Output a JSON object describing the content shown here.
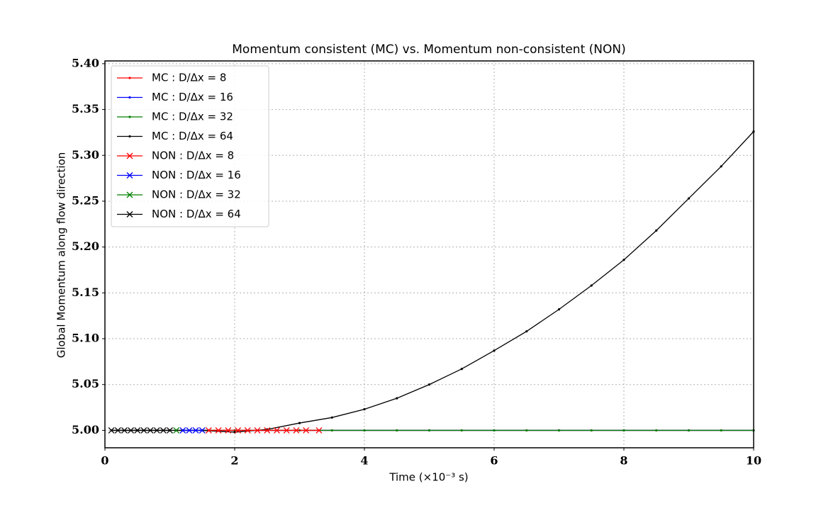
{
  "chart_data": {
    "type": "line",
    "title": "Momentum consistent (MC) vs. Momentum non-consistent (NON)",
    "x_label": "Time (×10⁻³ s)",
    "y_label": "Global Momentum along flow direction",
    "xlim": [
      0,
      10
    ],
    "ylim": [
      4.981,
      5.403
    ],
    "xticks": [
      0,
      2,
      4,
      6,
      8,
      10
    ],
    "yticks": [
      {
        "value": 5.0,
        "label": "5.00"
      },
      {
        "value": 5.05,
        "label": "5.05"
      },
      {
        "value": 5.1,
        "label": "5.10"
      },
      {
        "value": 5.15,
        "label": "5.15"
      },
      {
        "value": 5.2,
        "label": "5.20"
      },
      {
        "value": 5.25,
        "label": "5.25"
      },
      {
        "value": 5.3,
        "label": "5.30"
      },
      {
        "value": 5.35,
        "label": "5.35"
      },
      {
        "value": 5.4,
        "label": "5.40"
      }
    ],
    "grid": true,
    "legend": "upper left",
    "series": [
      {
        "name": "MC : D/Δx = 8",
        "color": "#ff0000",
        "marker": "dot",
        "x": [
          1.6,
          2,
          2.5,
          3,
          3.5,
          4,
          4.5,
          5,
          5.5,
          6,
          6.5,
          7,
          7.5,
          8,
          8.5,
          9,
          9.5,
          10
        ],
        "values": [
          5,
          5,
          5,
          5,
          5,
          5,
          5,
          5,
          5,
          5,
          5,
          5,
          5,
          5,
          5,
          5,
          5,
          5
        ]
      },
      {
        "name": "MC : D/Δx = 16",
        "color": "#0000ff",
        "marker": "dot",
        "x": [
          1.2,
          2,
          3,
          4,
          5,
          6,
          7,
          8,
          9,
          10
        ],
        "values": [
          5,
          5,
          5,
          5,
          5,
          5,
          5,
          5,
          5,
          5
        ]
      },
      {
        "name": "MC : D/Δx = 32",
        "color": "#008000",
        "marker": "dot",
        "x": [
          1.1,
          2,
          3,
          3.5,
          4,
          4.5,
          5,
          5.5,
          6,
          6.5,
          7,
          7.5,
          8,
          8.5,
          9,
          9.5,
          10
        ],
        "values": [
          5,
          5,
          5,
          5,
          5,
          5,
          5,
          5,
          5,
          5,
          5,
          5,
          5,
          5,
          5,
          5,
          5
        ]
      },
      {
        "name": "MC : D/Δx = 64",
        "color": "#000000",
        "marker": "dot",
        "x": [
          0.1,
          0.5,
          1,
          1.5,
          2,
          2.5,
          3,
          3.5,
          4,
          4.5,
          5,
          5.5,
          6,
          6.5,
          7,
          7.5,
          8,
          8.5,
          9,
          9.5,
          10
        ],
        "values": [
          5,
          5,
          5,
          5,
          4.998,
          5.001,
          5.008,
          5.014,
          5.023,
          5.035,
          5.05,
          5.067,
          5.087,
          5.108,
          5.132,
          5.158,
          5.186,
          5.218,
          5.253,
          5.288,
          5.326
        ]
      },
      {
        "name": "NON : D/Δx = 8",
        "color": "#ff0000",
        "marker": "x",
        "x": [
          1.6,
          1.75,
          1.9,
          2.05,
          2.2,
          2.35,
          2.5,
          2.65,
          2.8,
          2.95,
          3.1,
          3.3
        ],
        "values": [
          5,
          5,
          5,
          5,
          5,
          5,
          5,
          5,
          5,
          5,
          5,
          5
        ]
      },
      {
        "name": "NON : D/Δx = 16",
        "color": "#0000ff",
        "marker": "x",
        "x": [
          1.2,
          1.3,
          1.4,
          1.5
        ],
        "values": [
          5,
          5,
          5,
          5
        ]
      },
      {
        "name": "NON : D/Δx = 32",
        "color": "#008000",
        "marker": "x",
        "x": [
          1.1
        ],
        "values": [
          5
        ]
      },
      {
        "name": "NON : D/Δx = 64",
        "color": "#000000",
        "marker": "x",
        "x": [
          0.1,
          0.2,
          0.3,
          0.4,
          0.5,
          0.6,
          0.7,
          0.8,
          0.9,
          1.0
        ],
        "values": [
          5,
          5,
          5,
          5,
          5,
          5,
          5,
          5,
          5,
          5
        ]
      }
    ]
  }
}
